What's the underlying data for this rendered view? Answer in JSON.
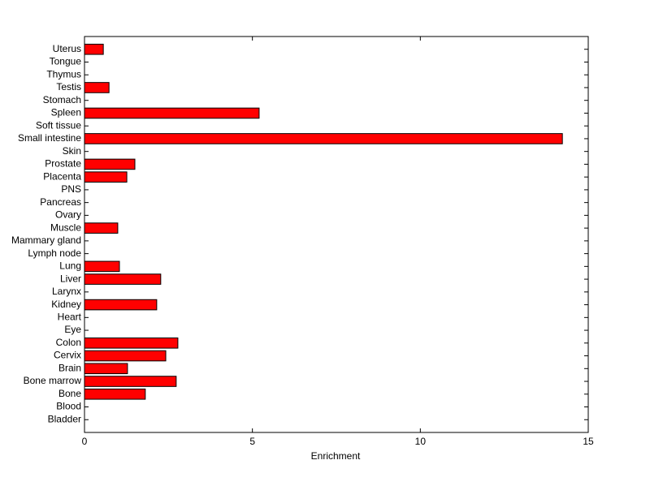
{
  "chart_data": {
    "type": "barh",
    "xlabel": "Enrichment",
    "categories": [
      "Bladder",
      "Blood",
      "Bone",
      "Bone marrow",
      "Brain",
      "Cervix",
      "Colon",
      "Eye",
      "Heart",
      "Kidney",
      "Larynx",
      "Liver",
      "Lung",
      "Lymph node",
      "Mammary gland",
      "Muscle",
      "Ovary",
      "Pancreas",
      "PNS",
      "Placenta",
      "Prostate",
      "Skin",
      "Small intestine",
      "Soft tissue",
      "Spleen",
      "Stomach",
      "Testis",
      "Thymus",
      "Tongue",
      "Uterus"
    ],
    "values": [
      0,
      0,
      1.81,
      2.73,
      1.28,
      2.42,
      2.78,
      0,
      0,
      2.15,
      0,
      2.27,
      1.04,
      0,
      0,
      0.99,
      0,
      0,
      0,
      1.26,
      1.5,
      0,
      14.23,
      0,
      5.2,
      0,
      0.73,
      0,
      0,
      0.56
    ],
    "color": "#ff0000",
    "xlim": [
      0,
      15
    ],
    "xticks": [
      0,
      5,
      10,
      15
    ]
  }
}
